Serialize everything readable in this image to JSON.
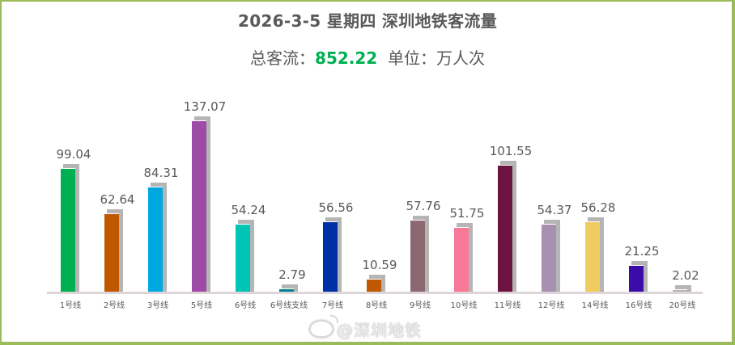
{
  "header": {
    "title": "2026-3-5 星期四  深圳地铁客流量",
    "subtitle_prefix": "总客流：",
    "total": "852.22",
    "subtitle_suffix": "  单位：万人次"
  },
  "watermark": "@深圳地铁",
  "colors": {
    "frame": "#9bbb59",
    "total_text": "#00b050",
    "shadow": "#b5b5b5",
    "baseline": "#ddd5d7"
  },
  "chart_data": {
    "type": "bar",
    "title": "2026-3-5 星期四 深圳地铁客流量",
    "subtitle": "总客流：852.22 单位：万人次",
    "xlabel": "",
    "ylabel": "",
    "ylim": [
      0,
      140
    ],
    "grid": false,
    "legend": "none",
    "categories": [
      "1号线",
      "2号线",
      "3号线",
      "5号线",
      "6号线",
      "6号线支线",
      "7号线",
      "8号线",
      "9号线",
      "10号线",
      "11号线",
      "12号线",
      "14号线",
      "16号线",
      "20号线"
    ],
    "values": [
      99.04,
      62.64,
      84.31,
      137.07,
      54.24,
      2.79,
      56.56,
      10.59,
      57.76,
      51.75,
      101.55,
      54.37,
      56.28,
      21.25,
      2.02
    ],
    "value_labels": [
      "99.04",
      "62.64",
      "84.31",
      "137.07",
      "54.24",
      "2.79",
      "56.56",
      "10.59",
      "57.76",
      "51.75",
      "101.55",
      "54.37",
      "56.28",
      "21.25",
      "2.02"
    ],
    "bar_colors": [
      "#00b050",
      "#c05800",
      "#00a8e0",
      "#9e4ba8",
      "#00c4b4",
      "#00808c",
      "#0030a8",
      "#c05800",
      "#8c6870",
      "#f87898",
      "#6c1440",
      "#a890b0",
      "#f0cc60",
      "#3c0ca8",
      "#b5b5b5"
    ]
  }
}
